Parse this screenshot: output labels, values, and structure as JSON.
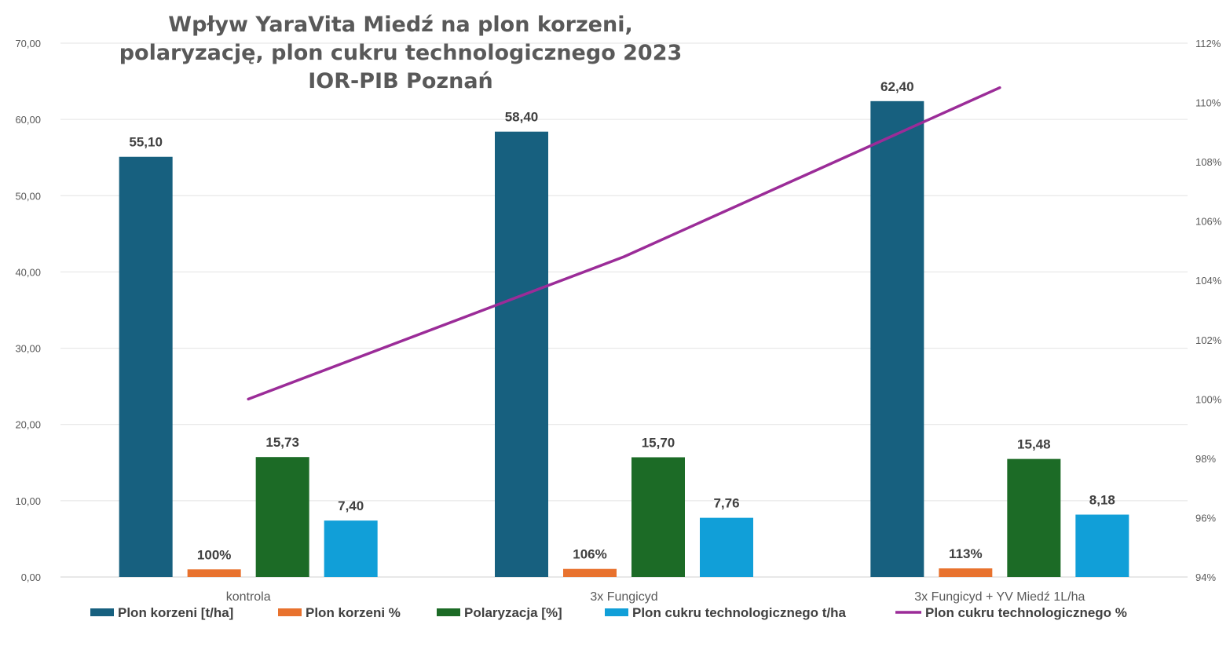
{
  "chart_data": {
    "type": "bar",
    "title": "Wpływ YaraVita Miedź na plon korzeni, polaryzację, plon cukru technologicznego 2023 IOR-PIB Poznań",
    "categories": [
      "kontrola",
      "3x Fungicyd",
      "3x Fungicyd + YV Miedź 1L/ha"
    ],
    "y_left": {
      "range": [
        0,
        70
      ],
      "ticks": [
        "0,00",
        "10,00",
        "20,00",
        "30,00",
        "40,00",
        "50,00",
        "60,00",
        "70,00"
      ]
    },
    "y_right": {
      "range": [
        94,
        112
      ],
      "ticks": [
        "94%",
        "96%",
        "98%",
        "100%",
        "102%",
        "104%",
        "106%",
        "108%",
        "110%",
        "112%"
      ]
    },
    "grid": true,
    "legend_position": "bottom",
    "series": [
      {
        "name": "Plon korzeni [t/ha]",
        "type": "bar",
        "axis": "left",
        "color": "#17607F",
        "values": [
          55.1,
          58.4,
          62.4
        ],
        "labels": [
          "55,10",
          "58,40",
          "62,40"
        ]
      },
      {
        "name": "Plon korzeni %",
        "type": "bar",
        "axis": "left",
        "color": "#E8722E",
        "values": [
          1.0,
          1.06,
          1.13
        ],
        "labels": [
          "100%",
          "106%",
          "113%"
        ]
      },
      {
        "name": "Polaryzacja [%]",
        "type": "bar",
        "axis": "left",
        "color": "#1C6B26",
        "values": [
          15.73,
          15.7,
          15.48
        ],
        "labels": [
          "15,73",
          "15,70",
          "15,48"
        ]
      },
      {
        "name": "Plon cukru technologicznego t/ha",
        "type": "bar",
        "axis": "left",
        "color": "#119FD8",
        "values": [
          7.4,
          7.76,
          8.18
        ],
        "labels": [
          "7,40",
          "7,76",
          "8,18"
        ]
      },
      {
        "name": "Plon cukru technologicznego %",
        "type": "line",
        "axis": "right",
        "color": "#9B2C98",
        "values": [
          100.0,
          104.8,
          110.5
        ]
      }
    ]
  }
}
